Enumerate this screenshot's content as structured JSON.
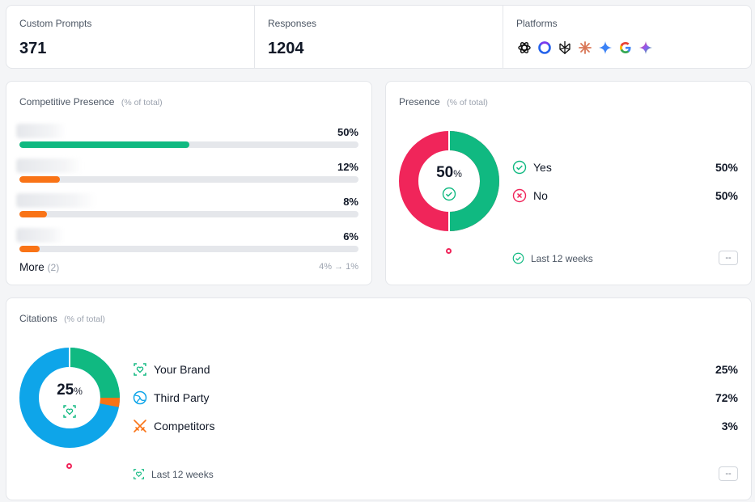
{
  "stats": [
    {
      "label": "Custom Prompts",
      "value": "371"
    },
    {
      "label": "Responses",
      "value": "1204"
    },
    {
      "label": "Platforms"
    }
  ],
  "platforms": [
    "chatgpt-icon",
    "copilot-icon",
    "perplexity-icon",
    "claude-icon",
    "gemini-icon",
    "google-icon",
    "gemini-color-icon"
  ],
  "competitive": {
    "title": "Competitive Presence",
    "subtitle": "(% of total)",
    "rows": [
      {
        "pct": "50%",
        "value": 0.5,
        "color": "#10b981"
      },
      {
        "pct": "12%",
        "value": 0.12,
        "color": "#f97316"
      },
      {
        "pct": "8%",
        "value": 0.08,
        "color": "#f97316"
      },
      {
        "pct": "6%",
        "value": 0.06,
        "color": "#f97316"
      }
    ],
    "more_label": "More",
    "more_count": "(2)",
    "range": "4% → 1%"
  },
  "presence": {
    "title": "Presence",
    "subtitle": "(% of total)",
    "center_value": "50",
    "center_unit": "%",
    "items": [
      {
        "label": "Yes",
        "value": "50%"
      },
      {
        "label": "No",
        "value": "50%"
      }
    ],
    "footer": "Last 12 weeks",
    "dash": "--",
    "colors": {
      "yes": "#10b981",
      "no": "#f0255a"
    }
  },
  "citations": {
    "title": "Citations",
    "subtitle": "(% of total)",
    "center_value": "25",
    "center_unit": "%",
    "items": [
      {
        "label": "Your Brand",
        "value": "25%"
      },
      {
        "label": "Third Party",
        "value": "72%"
      },
      {
        "label": "Competitors",
        "value": "3%"
      }
    ],
    "footer": "Last 12 weeks",
    "dash": "--",
    "colors": {
      "brand": "#10b981",
      "third": "#0ea5e9",
      "comp": "#f97316"
    }
  }
}
